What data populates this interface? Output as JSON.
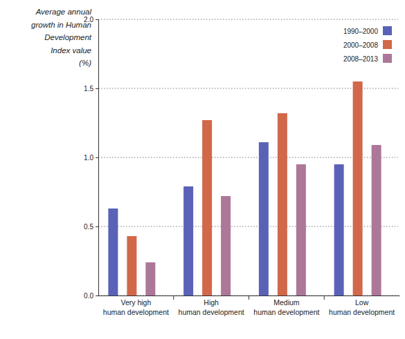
{
  "chart_data": {
    "type": "bar",
    "ylabel": "Average annual\ngrowth in Human\nDevelopment\nIndex value\n(%)",
    "categories": [
      "Very high\nhuman development",
      "High\nhuman development",
      "Medium\nhuman development",
      "Low\nhuman development"
    ],
    "series": [
      {
        "name": "1990–2000",
        "color": "#5a62b7",
        "values": [
          0.63,
          0.79,
          1.11,
          0.95
        ]
      },
      {
        "name": "2000–2008",
        "color": "#d1684a",
        "values": [
          0.43,
          1.27,
          1.32,
          1.55
        ]
      },
      {
        "name": "2008–2013",
        "color": "#ad7799",
        "values": [
          0.24,
          0.72,
          0.95,
          1.09
        ]
      }
    ],
    "ylim": [
      0,
      2
    ],
    "yticks": [
      {
        "value": 0,
        "label": "0.0"
      },
      {
        "value": 0.5,
        "label": "0.5"
      },
      {
        "value": 1,
        "label": "1.0"
      },
      {
        "value": 1.5,
        "label": "1.5"
      },
      {
        "value": 2,
        "label": "2.0"
      }
    ],
    "grid": true,
    "legend": "upper right"
  }
}
